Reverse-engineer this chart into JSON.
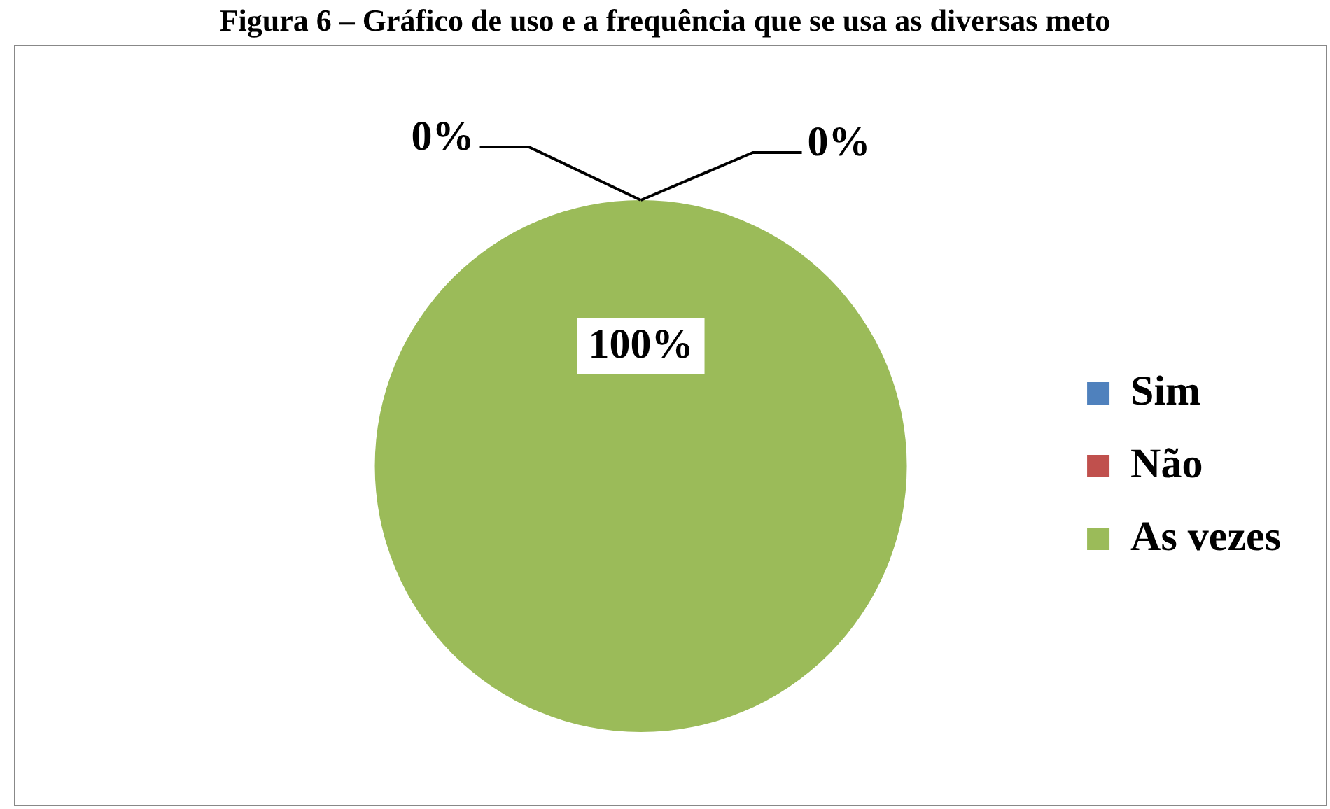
{
  "chart_data": {
    "type": "pie",
    "title": "Figura 6 – Gráfico de uso e a frequência que se usa as diversas meto",
    "categories": [
      "Sim",
      "Não",
      "As vezes"
    ],
    "values": [
      0,
      0,
      100
    ],
    "colors": [
      "#4f81bd",
      "#c0504d",
      "#9bbb59"
    ],
    "value_labels": [
      "0%",
      "0%",
      "100%"
    ],
    "legend": "right"
  }
}
